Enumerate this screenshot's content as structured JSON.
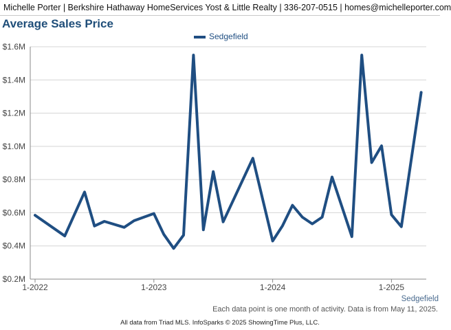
{
  "header": {
    "text": "Michelle Porter | Berkshire Hathaway HomeServices Yost & Little Realty | 336-207-0515 | homes@michelleporter.com"
  },
  "chart_data": {
    "type": "line",
    "title": "Average Sales Price",
    "xlabel": "",
    "ylabel": "",
    "ylim": [
      200000,
      1600000
    ],
    "y_ticks": [
      200000,
      400000,
      600000,
      800000,
      1000000,
      1200000,
      1400000,
      1600000
    ],
    "y_tick_labels": [
      "$0.2M",
      "$0.4M",
      "$0.6M",
      "$0.8M",
      "$1.0M",
      "$1.2M",
      "$1.4M",
      "$1.6M"
    ],
    "x_ticks": [
      "2022-01",
      "2023-01",
      "2024-01",
      "2025-01"
    ],
    "x_tick_labels": [
      "1-2022",
      "1-2023",
      "1-2024",
      "1-2025"
    ],
    "x": [
      "2022-01",
      "2022-04",
      "2022-06",
      "2022-07",
      "2022-08",
      "2022-10",
      "2022-11",
      "2023-01",
      "2023-02",
      "2023-03",
      "2023-04",
      "2023-05",
      "2023-06",
      "2023-07",
      "2023-08",
      "2023-11",
      "2024-01",
      "2024-02",
      "2024-03",
      "2024-04",
      "2024-05",
      "2024-06",
      "2024-07",
      "2024-09",
      "2024-10",
      "2024-11",
      "2024-12",
      "2025-01",
      "2025-02",
      "2025-04"
    ],
    "series": [
      {
        "name": "Sedgefield",
        "color": "#1f4e82",
        "values": [
          585000,
          460000,
          725000,
          520000,
          548000,
          512000,
          552000,
          595000,
          470000,
          385000,
          465000,
          1550000,
          497000,
          848000,
          545000,
          928000,
          430000,
          522000,
          645000,
          573000,
          533000,
          573000,
          815000,
          456000,
          1550000,
          902000,
          1003000,
          588000,
          516000,
          1325000
        ]
      }
    ],
    "legend": "top-center",
    "grid": true
  },
  "footer": {
    "series_label": "Sedgefield",
    "note": "Each data point is one month of activity. Data is from May 11, 2025.",
    "source": "All data from Triad MLS. InfoSparks © 2025 ShowingTime Plus, LLC."
  }
}
